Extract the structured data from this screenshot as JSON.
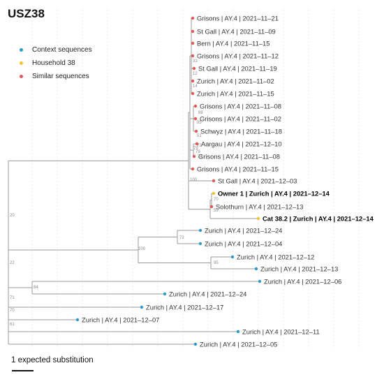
{
  "title": "USZ38",
  "legend": [
    {
      "label": "Context sequences",
      "color": "#2f9ac7"
    },
    {
      "label": "Household 38",
      "color": "#f1c232"
    },
    {
      "label": "Similar sequences",
      "color": "#e05a5a"
    }
  ],
  "scale_label": "1 expected substitution",
  "tips": [
    {
      "label": "Grisons | AY.4 | 2021–11–21",
      "group": "similar"
    },
    {
      "label": "St Gall | AY.4 | 2021–11–09",
      "group": "similar"
    },
    {
      "label": "Bern | AY.4 | 2021–11–15",
      "group": "similar"
    },
    {
      "label": "Grisons | AY.4 | 2021–11–12",
      "group": "similar"
    },
    {
      "label": "St Gall | AY.4 | 2021–11–19",
      "group": "similar"
    },
    {
      "label": "Zurich | AY.4 | 2021–11–02",
      "group": "similar"
    },
    {
      "label": "Zurich | AY.4 | 2021–11–15",
      "group": "similar"
    },
    {
      "label": "Grisons | AY.4 | 2021–11–08",
      "group": "similar"
    },
    {
      "label": "Grisons | AY.4 | 2021–11–02",
      "group": "similar"
    },
    {
      "label": "Schwyz | AY.4 | 2021–11–18",
      "group": "similar"
    },
    {
      "label": "Aargau | AY.4 | 2021–12–10",
      "group": "similar"
    },
    {
      "label": "Grisons | AY.4 | 2021–11–08",
      "group": "similar"
    },
    {
      "label": "Grisons | AY.4 | 2021–11–15",
      "group": "similar"
    },
    {
      "label": "St Gall | AY.4 | 2021–12–03",
      "group": "similar"
    },
    {
      "label": "Owner 1 | Zurich | AY.4 | 2021–12–14",
      "group": "household",
      "bold": true
    },
    {
      "label": "Solothurn | AY.4 | 2021–12–13",
      "group": "similar"
    },
    {
      "label": "Cat 38.2 | Zurich | AY.4 | 2021–12–14",
      "group": "household",
      "bold": true
    },
    {
      "label": "Zurich | AY.4 | 2021–12–24",
      "group": "context"
    },
    {
      "label": "Zurich | AY.4 | 2021–12–04",
      "group": "context"
    },
    {
      "label": "Zurich | AY.4 | 2021–12–12",
      "group": "context"
    },
    {
      "label": "Zurich | AY.4 | 2021–12–13",
      "group": "context"
    },
    {
      "label": "Zurich | AY.4 | 2021–12–06",
      "group": "context"
    },
    {
      "label": "Zurich | AY.4 | 2021–12–24",
      "group": "context"
    },
    {
      "label": "Zurich | AY.4 | 2021–12–17",
      "group": "context"
    },
    {
      "label": "Zurich | AY.4 | 2021–12–07",
      "group": "context"
    },
    {
      "label": "Zurich | AY.4 | 2021–12–11",
      "group": "context"
    },
    {
      "label": "Zurich | AY.4 | 2021–12–05",
      "group": "context"
    }
  ],
  "support_values": [
    "20",
    "22",
    "100",
    "72",
    "95",
    "84",
    "71",
    "70",
    "61",
    "100",
    "70",
    "59",
    "33",
    "12",
    "14",
    "88",
    "79",
    "85",
    "51",
    "72",
    "79",
    "74"
  ]
}
